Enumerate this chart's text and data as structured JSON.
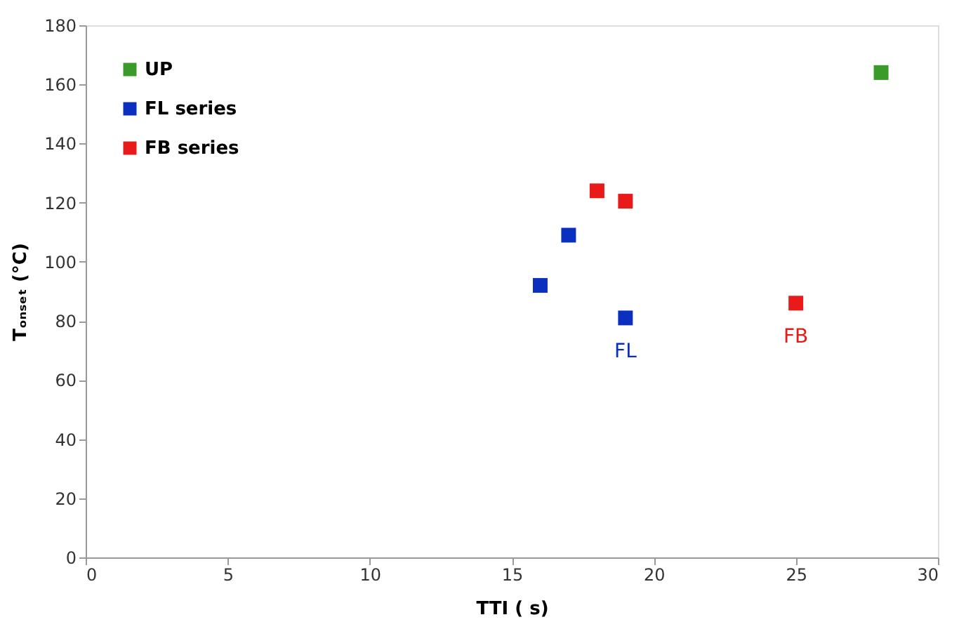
{
  "chart_data": {
    "type": "scatter",
    "xlabel": "TTI ( s)",
    "ylabel": "Tₒₙₛₑₜ  (°C)",
    "xlim": [
      0,
      30
    ],
    "xticks": [
      0,
      5,
      10,
      15,
      20,
      25,
      30
    ],
    "ylim": [
      0,
      180
    ],
    "yticks": [
      0,
      20,
      40,
      60,
      80,
      100,
      120,
      140,
      160,
      180
    ],
    "grid": false,
    "legend": "top left",
    "marker": "square",
    "series": [
      {
        "name": "UP",
        "color": "#3a9a2a",
        "x": [
          28
        ],
        "values": [
          164
        ]
      },
      {
        "name": "FL series",
        "color": "#0b2fbf",
        "x": [
          16,
          17,
          19
        ],
        "values": [
          92,
          109,
          81
        ]
      },
      {
        "name": "FB series",
        "color": "#e81a1a",
        "x": [
          18,
          19,
          25
        ],
        "values": [
          124,
          120.5,
          86
        ]
      }
    ],
    "annotations": [
      {
        "text": "FL",
        "x": 19,
        "y": 81
      },
      {
        "text": "FB",
        "x": 25,
        "y": 86
      }
    ]
  }
}
